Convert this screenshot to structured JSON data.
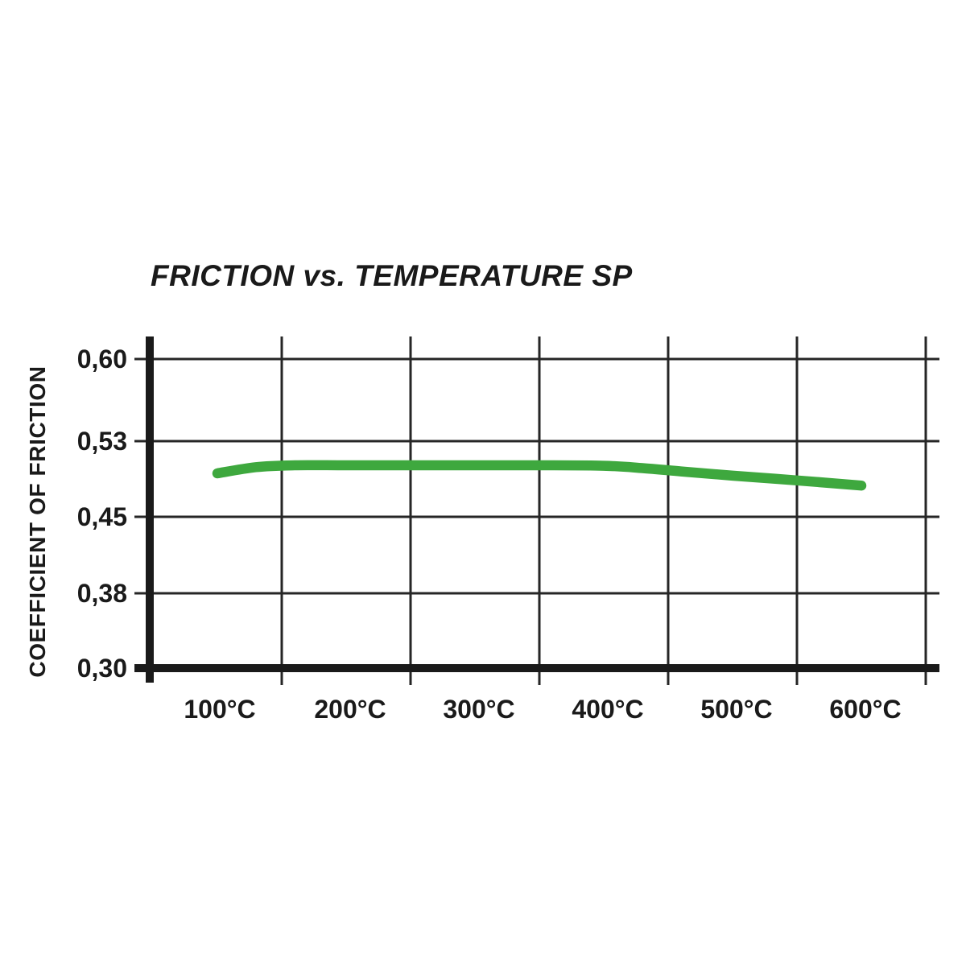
{
  "chart_data": {
    "type": "line",
    "title": "FRICTION vs. TEMPERATURE SP",
    "xlabel": "",
    "ylabel": "COEFFICIENT OF FRICTION",
    "x_tick_labels": [
      "100°C",
      "200°C",
      "300°C",
      "400°C",
      "500°C",
      "600°C"
    ],
    "y_tick_labels": [
      "0,60",
      "0,53",
      "0,45",
      "0,38",
      "0,30"
    ],
    "y_tick_values": [
      0.6,
      0.53,
      0.45,
      0.38,
      0.3
    ],
    "x_range_degC": [
      100,
      600
    ],
    "ylim": [
      0.3,
      0.62
    ],
    "grid": true,
    "legend_position": "none",
    "series": [
      {
        "name": "friction-coefficient-curve",
        "color": "#3ea83e",
        "points": [
          [
            100,
            0.496
          ],
          [
            130,
            0.5025
          ],
          [
            160,
            0.5045
          ],
          [
            200,
            0.5045
          ],
          [
            250,
            0.5045
          ],
          [
            300,
            0.5045
          ],
          [
            350,
            0.5045
          ],
          [
            400,
            0.504
          ],
          [
            430,
            0.5015
          ],
          [
            460,
            0.498
          ],
          [
            500,
            0.4935
          ],
          [
            550,
            0.4885
          ],
          [
            600,
            0.483
          ]
        ]
      }
    ]
  },
  "colors": {
    "line_green": "#3ea83e",
    "axis_black": "#1a1a1a",
    "grid_dark": "#262626",
    "text_black": "#1a1a1a",
    "background": "#ffffff"
  }
}
